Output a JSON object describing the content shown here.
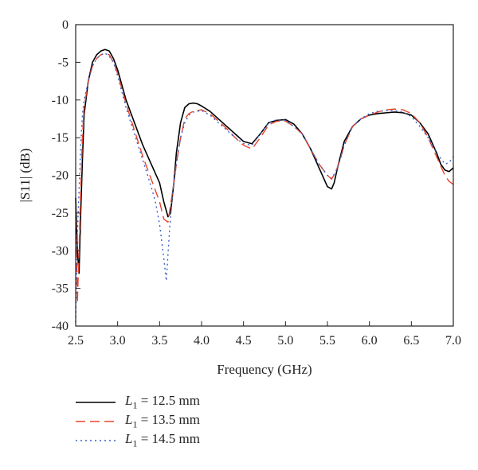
{
  "chart_data": {
    "type": "line",
    "xlabel": "Frequency (GHz)",
    "ylabel": "|S11| (dB)",
    "xlim": [
      2.5,
      7.0
    ],
    "ylim": [
      -40,
      0
    ],
    "xticks": [
      "2.5",
      "3.0",
      "3.5",
      "4.0",
      "4.5",
      "5.0",
      "5.5",
      "6.0",
      "6.5",
      "7.0"
    ],
    "yticks": [
      "0",
      "-5",
      "-10",
      "-15",
      "-20",
      "-25",
      "-30",
      "-35",
      "-40"
    ],
    "grid": false,
    "legend_position": "below",
    "series": [
      {
        "name": "L1 = 12.5 mm",
        "label_var": "L",
        "label_sub": "1",
        "label_rest": " = 12.5 mm",
        "color": "#000000",
        "style": "solid",
        "x": [
          2.5,
          2.52,
          2.54,
          2.56,
          2.58,
          2.6,
          2.65,
          2.7,
          2.75,
          2.8,
          2.85,
          2.9,
          2.95,
          3.0,
          3.1,
          3.2,
          3.3,
          3.4,
          3.5,
          3.55,
          3.6,
          3.63,
          3.67,
          3.7,
          3.75,
          3.8,
          3.85,
          3.9,
          3.95,
          4.0,
          4.1,
          4.2,
          4.3,
          4.4,
          4.5,
          4.6,
          4.7,
          4.8,
          4.9,
          5.0,
          5.1,
          5.2,
          5.3,
          5.4,
          5.5,
          5.55,
          5.58,
          5.62,
          5.7,
          5.8,
          5.9,
          6.0,
          6.1,
          6.2,
          6.3,
          6.4,
          6.5,
          6.6,
          6.7,
          6.8,
          6.85,
          6.9,
          6.95,
          7.0
        ],
        "y": [
          -23,
          -30,
          -33,
          -25,
          -18,
          -12,
          -7.5,
          -5,
          -4,
          -3.5,
          -3.3,
          -3.5,
          -4.5,
          -6,
          -10,
          -13,
          -16,
          -18.5,
          -21,
          -23.5,
          -25.5,
          -25,
          -21,
          -17,
          -13,
          -11,
          -10.5,
          -10.4,
          -10.5,
          -10.8,
          -11.5,
          -12.5,
          -13.5,
          -14.5,
          -15.5,
          -15.8,
          -14.5,
          -13,
          -12.7,
          -12.6,
          -13.2,
          -14.5,
          -16.5,
          -19,
          -21.5,
          -21.8,
          -21,
          -19,
          -15.5,
          -13.5,
          -12.5,
          -12,
          -11.8,
          -11.7,
          -11.6,
          -11.7,
          -12,
          -13,
          -14.5,
          -17,
          -18.5,
          -19.3,
          -19.5,
          -19
        ]
      },
      {
        "name": "L1 = 13.5 mm",
        "label_var": "L",
        "label_sub": "1",
        "label_rest": " = 13.5 mm",
        "color": "#e8452c",
        "style": "dashed",
        "x": [
          2.5,
          2.52,
          2.54,
          2.56,
          2.58,
          2.6,
          2.65,
          2.7,
          2.75,
          2.8,
          2.85,
          2.9,
          2.95,
          3.0,
          3.1,
          3.2,
          3.3,
          3.4,
          3.5,
          3.55,
          3.6,
          3.65,
          3.7,
          3.75,
          3.8,
          3.85,
          3.9,
          4.0,
          4.1,
          4.2,
          4.3,
          4.4,
          4.5,
          4.6,
          4.7,
          4.8,
          4.9,
          5.0,
          5.1,
          5.2,
          5.3,
          5.4,
          5.5,
          5.55,
          5.6,
          5.65,
          5.7,
          5.8,
          5.9,
          6.0,
          6.1,
          6.2,
          6.3,
          6.4,
          6.5,
          6.6,
          6.7,
          6.8,
          6.9,
          6.95,
          7.0
        ],
        "y": [
          -24,
          -37,
          -30,
          -22,
          -15,
          -11,
          -7.5,
          -5.5,
          -4.5,
          -4,
          -3.8,
          -4,
          -5,
          -6.5,
          -10.5,
          -14,
          -17.5,
          -20.5,
          -23.5,
          -25.8,
          -26.2,
          -22.5,
          -18.5,
          -15,
          -12.5,
          -11.8,
          -11.5,
          -11.3,
          -11.8,
          -12.8,
          -13.8,
          -15,
          -16,
          -16.5,
          -15,
          -13.3,
          -12.8,
          -12.8,
          -13.5,
          -14.5,
          -16.5,
          -18.5,
          -20,
          -20.5,
          -19.5,
          -18,
          -16,
          -13.5,
          -12.5,
          -12,
          -11.6,
          -11.3,
          -11.2,
          -11.3,
          -11.8,
          -13,
          -15,
          -17.5,
          -20,
          -20.8,
          -21.2
        ]
      },
      {
        "name": "L1 = 14.5 mm",
        "label_var": "L",
        "label_sub": "1",
        "label_rest": " = 14.5 mm",
        "color": "#3a5fcd",
        "style": "dotted",
        "x": [
          2.5,
          2.52,
          2.54,
          2.56,
          2.58,
          2.6,
          2.65,
          2.7,
          2.75,
          2.8,
          2.85,
          2.9,
          2.95,
          3.0,
          3.1,
          3.2,
          3.3,
          3.4,
          3.45,
          3.5,
          3.55,
          3.58,
          3.62,
          3.65,
          3.7,
          3.75,
          3.8,
          3.85,
          3.9,
          4.0,
          4.1,
          4.2,
          4.3,
          4.4,
          4.5,
          4.6,
          4.7,
          4.8,
          4.9,
          5.0,
          5.1,
          5.2,
          5.3,
          5.4,
          5.5,
          5.55,
          5.6,
          5.65,
          5.7,
          5.8,
          5.9,
          6.0,
          6.1,
          6.2,
          6.3,
          6.4,
          6.5,
          6.6,
          6.7,
          6.8,
          6.9,
          6.95,
          7.0
        ],
        "y": [
          -39.5,
          -28,
          -22,
          -16,
          -12,
          -10,
          -7.5,
          -5.5,
          -4.5,
          -4,
          -3.8,
          -4.2,
          -5,
          -6.8,
          -11,
          -14.5,
          -18,
          -21.5,
          -23.5,
          -26.5,
          -31,
          -34,
          -27,
          -23,
          -18.5,
          -15,
          -13,
          -12,
          -11.6,
          -11.4,
          -12,
          -13,
          -14,
          -15,
          -15.8,
          -16,
          -14.5,
          -13,
          -12.6,
          -12.7,
          -13.5,
          -14.5,
          -16.5,
          -18.5,
          -20,
          -20.4,
          -19.5,
          -18,
          -16,
          -13.5,
          -12.5,
          -11.8,
          -11.5,
          -11.4,
          -11.4,
          -11.6,
          -12.2,
          -13.5,
          -15,
          -17,
          -18.5,
          -18.3,
          -17.5
        ]
      }
    ]
  }
}
